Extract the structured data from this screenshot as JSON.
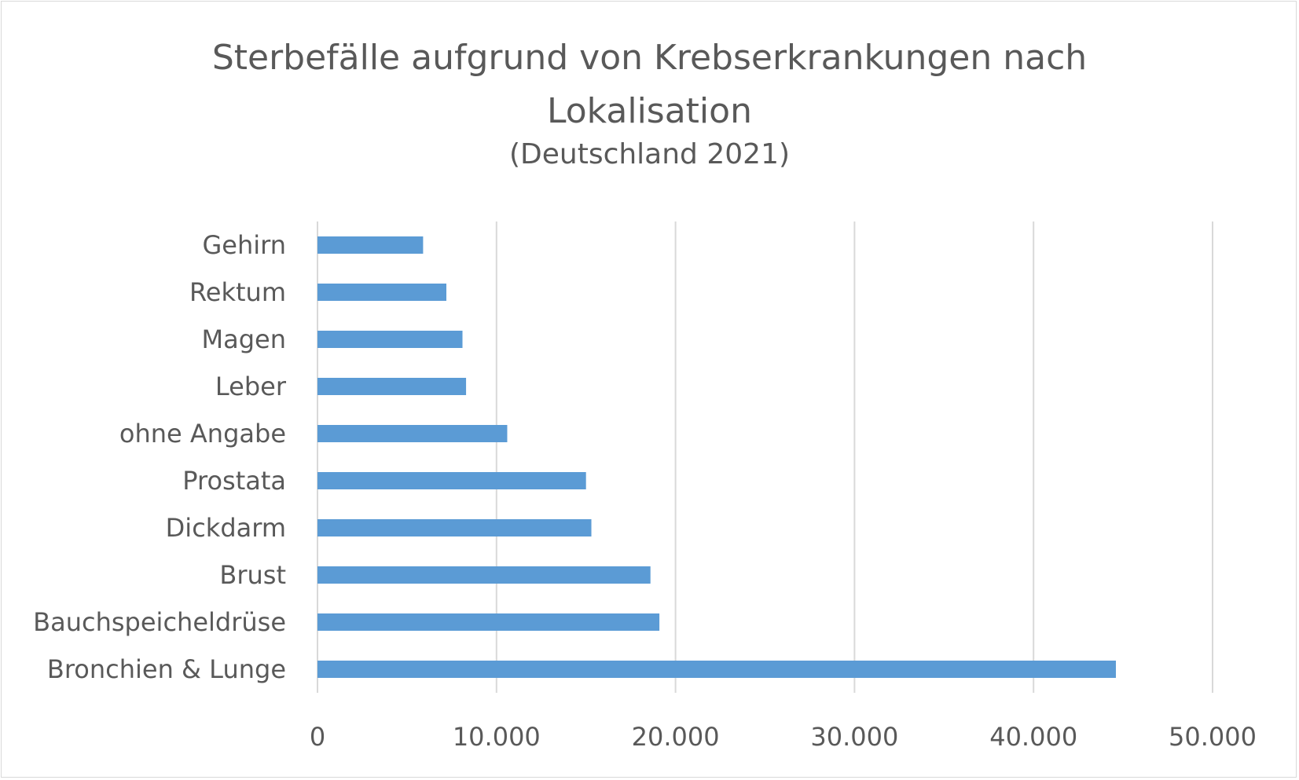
{
  "chart_data": {
    "type": "bar",
    "orientation": "horizontal",
    "title": "Sterbefälle aufgrund von Krebserkrankungen nach Lokalisation",
    "subtitle": "(Deutschland 2021)",
    "categories": [
      "Gehirn",
      "Rektum",
      "Magen",
      "Leber",
      "ohne Angabe",
      "Prostata",
      "Dickdarm",
      "Brust",
      "Bauchspeicheldrüse",
      "Bronchien & Lunge"
    ],
    "values": [
      5900,
      7200,
      8100,
      8300,
      10600,
      15000,
      15300,
      18600,
      19100,
      44600
    ],
    "x_ticks": [
      "0",
      "10.000",
      "20.000",
      "30.000",
      "40.000",
      "50.000"
    ],
    "xlim": [
      0,
      50000
    ],
    "grid": "vertical",
    "bar_color": "#5b9bd5",
    "grid_color": "#d9d9d9",
    "text_color": "#595959"
  }
}
